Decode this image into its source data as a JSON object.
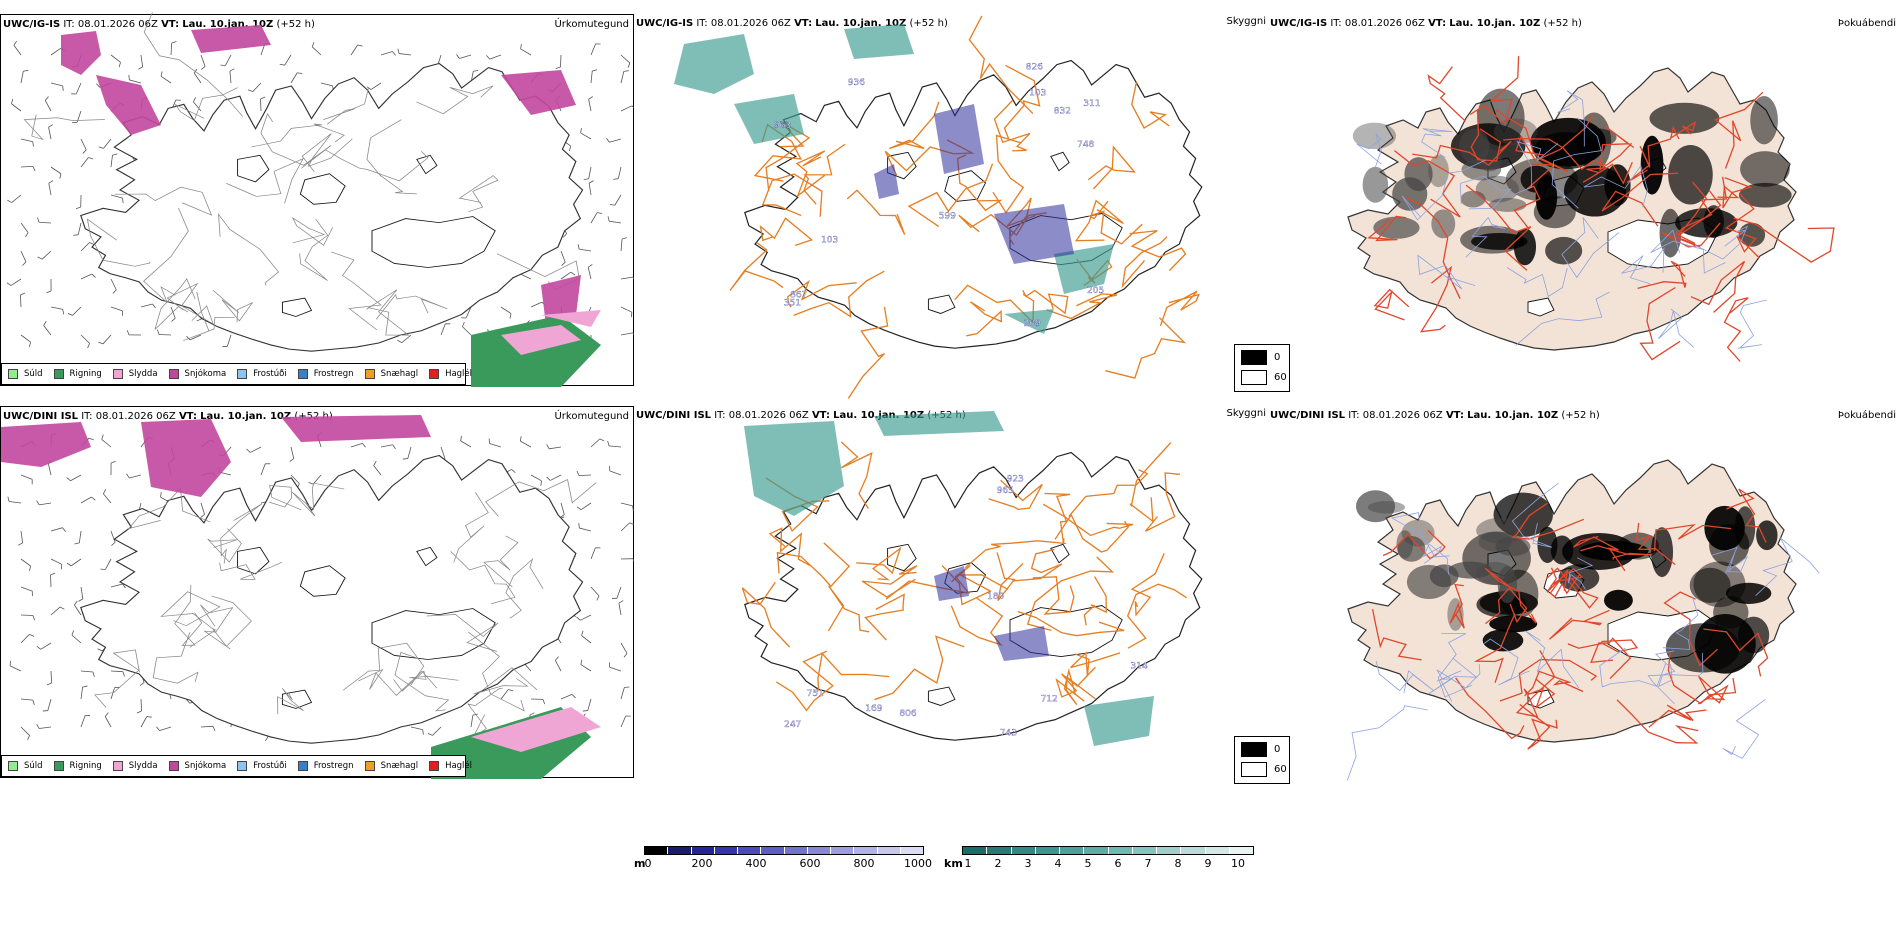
{
  "rows": [
    {
      "model": "UWC/IG-IS",
      "issue_label": "IT:",
      "issue_time": "08.01.2026 06Z",
      "valid_label": "VT:",
      "valid_time": "Lau. 10.jan. 10Z",
      "lead": "(+52 h)",
      "precip_type_title": "Úrkomutegund",
      "visibility_title": "Skyggni",
      "fog_title": "Þokuábendi",
      "cloud_labels": [
        "936",
        "748",
        "209",
        "963",
        "311",
        "351",
        "205",
        "599",
        "103",
        "832",
        "867",
        "826",
        "103"
      ],
      "ceiling_labels": [
        "103",
        "351",
        "205"
      ]
    },
    {
      "model": "UWC/DINI ISL",
      "issue_label": "IT:",
      "issue_time": "08.01.2026 06Z",
      "valid_label": "VT:",
      "valid_time": "Lau. 10.jan. 10Z",
      "lead": "(+52 h)",
      "precip_type_title": "Úrkomutegund",
      "visibility_title": "Skyggni",
      "fog_title": "Þokuábendi",
      "cloud_labels": [
        "169",
        "180",
        "743",
        "923",
        "965",
        "712",
        "806",
        "751",
        "247",
        "314"
      ],
      "ceiling_labels": [
        "806",
        "751"
      ]
    }
  ],
  "precip_legend": [
    {
      "label": "Súld",
      "color": "#90ee90"
    },
    {
      "label": "Rigning",
      "color": "#3a9a5b"
    },
    {
      "label": "Slydda",
      "color": "#f0a6d4"
    },
    {
      "label": "Snjókoma",
      "color": "#c2479f"
    },
    {
      "label": "Frostúði",
      "color": "#8ec4f0"
    },
    {
      "label": "Frostregn",
      "color": "#3b7fc4"
    },
    {
      "label": "Snæhagl",
      "color": "#f0a020"
    },
    {
      "label": "Haglél",
      "color": "#e02020"
    }
  ],
  "cloudbase_bar": {
    "unit": "m",
    "ticks": [
      "0",
      "200",
      "400",
      "600",
      "800",
      "1000"
    ],
    "colors": [
      "#000000",
      "#1a1a6e",
      "#23239a",
      "#3434b0",
      "#4a4ac0",
      "#5d5dc8",
      "#7272cf",
      "#8888d6",
      "#9d9ddc",
      "#b2b2e3",
      "#c8c8ea",
      "#dcdcf2"
    ]
  },
  "visibility_bar": {
    "unit": "km",
    "ticks": [
      "1",
      "2",
      "3",
      "4",
      "5",
      "6",
      "7",
      "8",
      "9",
      "10"
    ],
    "colors": [
      "#1b6b66",
      "#257b75",
      "#2f8a83",
      "#3a9790",
      "#4aa29b",
      "#5dada6",
      "#72b8b1",
      "#88c3bd",
      "#a0cfca",
      "#b9dcd8",
      "#d2e9e6",
      "#eaf5f3"
    ]
  },
  "cloud_legend": [
    {
      "label": "0",
      "color": "#000000"
    },
    {
      "label": "60",
      "color": "#ffffff"
    }
  ],
  "colors": {
    "snow": "#c2479f",
    "rain": "#3a9a5b",
    "sleet": "#f0a6d4",
    "road": "#e67e22",
    "vis": "#3a9a90",
    "cloud": "#2d2d9a",
    "land": "#f3e3d6",
    "redroad": "#e0462a"
  }
}
